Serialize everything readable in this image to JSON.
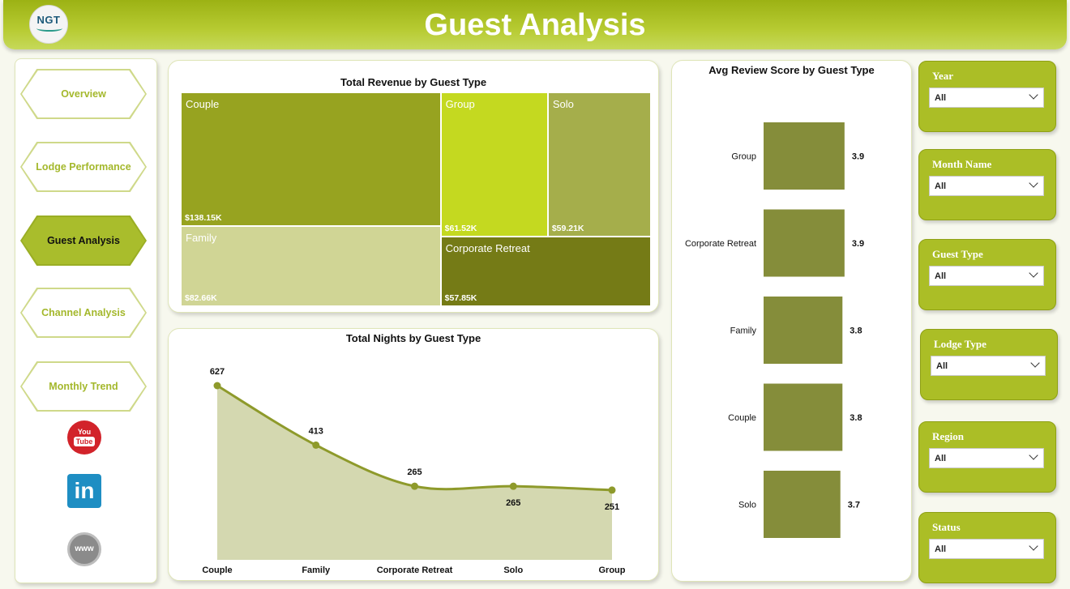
{
  "header": {
    "title": "Guest Analysis",
    "logo_text": "NGT"
  },
  "nav": {
    "items": [
      {
        "label": "Overview",
        "active": false
      },
      {
        "label": "Lodge Performance",
        "active": false
      },
      {
        "label": "Guest Analysis",
        "active": true
      },
      {
        "label": "Channel Analysis",
        "active": false
      },
      {
        "label": "Monthly Trend",
        "active": false
      }
    ],
    "social": {
      "youtube_top": "You",
      "youtube_bottom": "Tube",
      "linkedin": "in",
      "web": "www"
    }
  },
  "slicers": [
    {
      "label": "Year",
      "value": "All"
    },
    {
      "label": "Month Name",
      "value": "All"
    },
    {
      "label": "Guest Type",
      "value": "All"
    },
    {
      "label": "Lodge Type",
      "value": "All"
    },
    {
      "label": "Region",
      "value": "All"
    },
    {
      "label": "Status",
      "value": "All"
    }
  ],
  "chart_data": [
    {
      "type": "treemap",
      "title": "Total Revenue by Guest Type",
      "items": [
        {
          "name": "Couple",
          "value": 138.15,
          "label": "$138.15K",
          "color": "#97a320"
        },
        {
          "name": "Family",
          "value": 82.66,
          "label": "$82.66K",
          "color": "#d0d595"
        },
        {
          "name": "Group",
          "value": 61.52,
          "label": "$61.52K",
          "color": "#c4d920"
        },
        {
          "name": "Solo",
          "value": 59.21,
          "label": "$59.21K",
          "color": "#a5ae4b"
        },
        {
          "name": "Corporate Retreat",
          "value": 57.85,
          "label": "$57.85K",
          "color": "#757b16"
        }
      ]
    },
    {
      "type": "area",
      "title": "Total Nights by Guest Type",
      "categories": [
        "Couple",
        "Family",
        "Corporate Retreat",
        "Solo",
        "Group"
      ],
      "values": [
        627,
        413,
        265,
        265,
        251
      ],
      "color": "#8e9a2b",
      "fill": "#d4d8b0"
    },
    {
      "type": "bar",
      "orientation": "horizontal",
      "title": "Avg Review Score by Guest Type",
      "categories": [
        "Group",
        "Corporate Retreat",
        "Family",
        "Couple",
        "Solo"
      ],
      "values": [
        3.9,
        3.9,
        3.8,
        3.8,
        3.7
      ],
      "color": "#858d3a"
    }
  ]
}
